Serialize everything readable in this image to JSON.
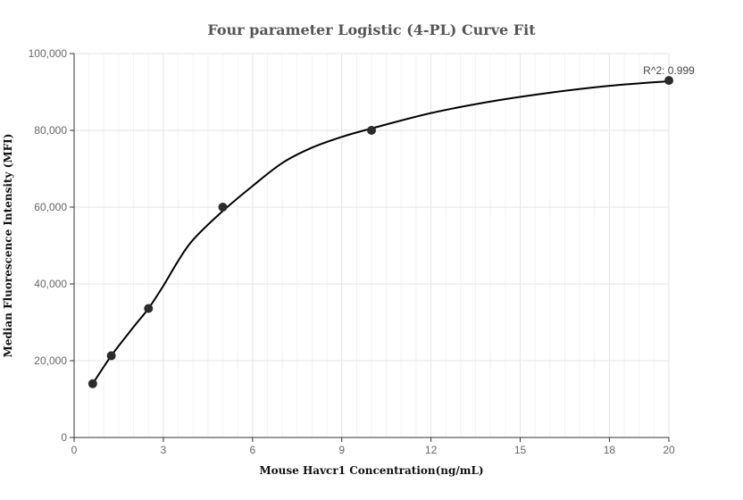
{
  "chart_data": {
    "type": "scatter",
    "title": "Four parameter Logistic (4-PL) Curve Fit",
    "xlabel": "Mouse Havcr1 Concentration(ng/mL)",
    "ylabel": "Median Fluorescence Intensity (MFI)",
    "xlim": [
      0,
      20
    ],
    "ylim": [
      0,
      100000
    ],
    "x_ticks": [
      "0",
      "3",
      "6",
      "9",
      "12",
      "15",
      "18",
      "20"
    ],
    "y_ticks": [
      "0",
      "20,000",
      "40,000",
      "60,000",
      "80,000",
      "100,000"
    ],
    "grid": true,
    "series": [
      {
        "type": "scatter",
        "x": [
          0.625,
          1.25,
          2.5,
          5,
          10,
          20
        ],
        "y": [
          14000,
          21300,
          33600,
          60000,
          80000,
          93000
        ]
      }
    ],
    "curve": {
      "type": "line",
      "x": [
        0.625,
        1.25,
        2.0,
        2.5,
        3.0,
        3.5,
        4.0,
        5.0,
        6.0,
        7.0,
        8.0,
        9.0,
        10.0,
        12.0,
        14.0,
        16.0,
        18.0,
        20.0
      ],
      "y": [
        14000,
        21300,
        28800,
        33600,
        39500,
        46000,
        51500,
        59000,
        65500,
        71500,
        75500,
        78300,
        80500,
        84500,
        87500,
        89800,
        91600,
        92800
      ]
    },
    "annotation": "R^2: 0.999",
    "colors": {
      "points": "#2b2b2b",
      "curve": "#000000"
    }
  }
}
